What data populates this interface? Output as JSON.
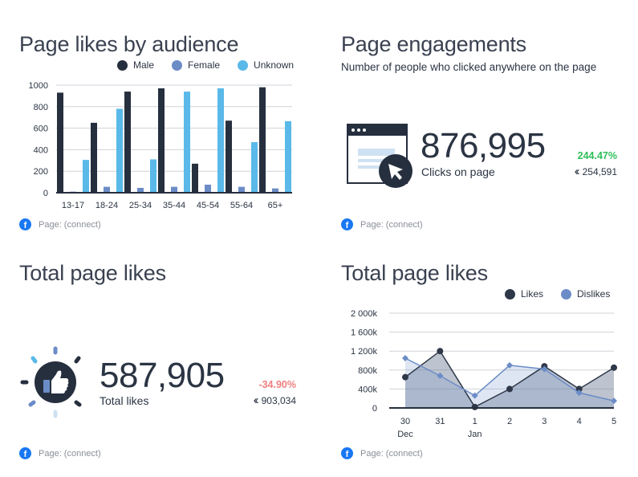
{
  "colors": {
    "male": "#262f3e",
    "female": "#6b8cc7",
    "unknown": "#5ab9e8",
    "positive": "#2fbf59",
    "negative": "#f07f7f",
    "facebook": "#1877f2",
    "likes": "#2f3849",
    "dislikes": "#6b8cc7"
  },
  "source_label": "Page: (connect)",
  "panels": {
    "audience": {
      "title": "Page likes by audience",
      "legend": [
        "Male",
        "Female",
        "Unknown"
      ]
    },
    "engagements": {
      "title": "Page engagements",
      "subtitle": "Number of people who clicked anywhere on the page",
      "value": "876,995",
      "label": "Clicks on page",
      "delta": "244.47%",
      "previous": "254,591",
      "icon": "browser-click-icon"
    },
    "total_likes": {
      "title": "Total page likes",
      "value": "587,905",
      "label": "Total likes",
      "delta": "-34.90%",
      "previous": "903,034",
      "icon": "thumbs-up-icon"
    },
    "likes_trend": {
      "title": "Total page likes",
      "legend": [
        "Likes",
        "Dislikes"
      ]
    }
  },
  "chart_data": [
    {
      "type": "bar",
      "categories": [
        "13-17",
        "18-24",
        "25-34",
        "35-44",
        "45-54",
        "55-64",
        "65+"
      ],
      "series": [
        {
          "name": "Male",
          "values": [
            930,
            650,
            940,
            970,
            270,
            670,
            980
          ]
        },
        {
          "name": "Female",
          "values": [
            10,
            55,
            45,
            55,
            75,
            55,
            40
          ]
        },
        {
          "name": "Unknown",
          "values": [
            305,
            780,
            310,
            940,
            970,
            470,
            665
          ]
        }
      ],
      "yticks": [
        "0",
        "200",
        "400",
        "600",
        "800",
        "1000"
      ],
      "ylim": [
        0,
        1000
      ],
      "grid": true,
      "legend_position": "top"
    },
    {
      "type": "area",
      "x": [
        "30",
        "31",
        "1",
        "2",
        "3",
        "4",
        "5"
      ],
      "x_sublabels": [
        "Dec",
        "",
        "Jan",
        "",
        "",
        "",
        ""
      ],
      "series": [
        {
          "name": "Likes",
          "values": [
            650000,
            1200000,
            20000,
            400000,
            880000,
            400000,
            850000
          ]
        },
        {
          "name": "Dislikes",
          "values": [
            1050000,
            680000,
            260000,
            900000,
            820000,
            320000,
            150000
          ]
        }
      ],
      "yticks": [
        "0",
        "400k",
        "800k",
        "1 200k",
        "1 600k",
        "2 000k"
      ],
      "ylim": [
        0,
        2000000
      ],
      "grid": true,
      "legend_position": "top-right"
    }
  ]
}
